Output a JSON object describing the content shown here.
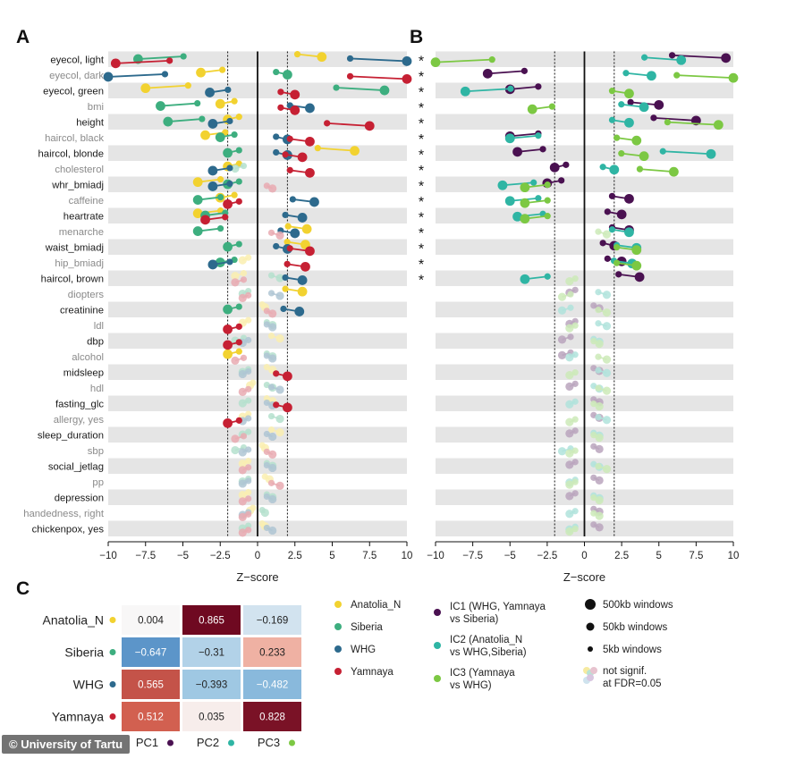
{
  "panels": {
    "a": "A",
    "b": "B",
    "c": "C"
  },
  "chart_data": [
    {
      "type": "scatter",
      "panel": "A",
      "xlabel": "Z−score",
      "xlim": [
        -10,
        10
      ],
      "xticks": [
        -10,
        -7.5,
        -5,
        -2.5,
        0,
        2.5,
        5,
        7.5,
        10
      ],
      "xtick_labels": [
        "−10",
        "−7.5",
        "−5",
        "−2.5",
        "0",
        "2.5",
        "5",
        "7.5",
        "10"
      ],
      "reference_lines": [
        -2,
        0,
        2
      ],
      "traits": [
        "eyecol, light",
        "eyecol, dark",
        "eyecol, green",
        "bmi",
        "height",
        "haircol, black",
        "haircol, blonde",
        "cholesterol",
        "whr_bmiadj",
        "caffeine",
        "heartrate",
        "menarche",
        "waist_bmiadj",
        "hip_bmiadj",
        "haircol, brown",
        "diopters",
        "creatinine",
        "ldl",
        "dbp",
        "alcohol",
        "midsleep",
        "hdl",
        "fasting_glc",
        "allergy, yes",
        "sleep_duration",
        "sbp",
        "social_jetlag",
        "pp",
        "depression",
        "handedness, right",
        "chickenpox, yes"
      ],
      "series": [
        {
          "name": "Anatolia_N",
          "values": [
            4.3,
            -3.8,
            -7.5,
            -2.5,
            -2.0,
            -3.5,
            6.5,
            -2.0,
            -4.0,
            -2.5,
            -4.0,
            3.3,
            3.2,
            -1.0,
            -1.5,
            3.0,
            0.5,
            -1.0,
            1.5,
            -2.0,
            1.0,
            -0.5,
            1.0,
            -1.0,
            1.5,
            0.5,
            -1.0,
            0.8,
            -1.0,
            -0.5,
            0.5
          ]
        },
        {
          "name": "Siberia",
          "values": [
            -8.0,
            2.0,
            8.5,
            -6.5,
            -6.0,
            -2.5,
            -2.0,
            -1.5,
            -2.0,
            -4.0,
            -3.5,
            -4.0,
            -2.0,
            -2.5,
            1.5,
            -1.0,
            -2.0,
            1.0,
            -1.5,
            1.0,
            -1.0,
            1.0,
            -1.0,
            1.5,
            -1.0,
            -1.5,
            1.0,
            -1.0,
            1.0,
            0.5,
            -1.0
          ]
        },
        {
          "name": "WHG",
          "values": [
            10.0,
            -10.0,
            -3.2,
            3.5,
            -3.0,
            2.0,
            2.0,
            -3.0,
            -3.0,
            3.8,
            3.0,
            2.5,
            2.0,
            -3.0,
            3.0,
            1.5,
            2.8,
            1.0,
            -1.0,
            1.0,
            -1.0,
            1.5,
            1.0,
            -1.0,
            1.0,
            -1.0,
            1.0,
            -1.0,
            1.0,
            -1.0,
            1.0
          ]
        },
        {
          "name": "Yamnaya",
          "values": [
            -9.5,
            10.0,
            2.5,
            2.5,
            7.5,
            3.5,
            3.0,
            3.5,
            1.0,
            -2.0,
            -3.5,
            1.5,
            3.5,
            3.2,
            -1.5,
            -1.0,
            1.0,
            -2.0,
            -2.0,
            -1.5,
            2.0,
            -1.0,
            2.0,
            -2.0,
            -1.5,
            1.0,
            -1.0,
            1.5,
            -1.0,
            -1.0,
            -1.0
          ]
        }
      ],
      "legend": {
        "populations": [
          "Anatolia_N",
          "Siberia",
          "WHG",
          "Yamnaya"
        ],
        "pop_colors": [
          "#f2d230",
          "#3dae7f",
          "#2d6a8d",
          "#c62033"
        ]
      }
    },
    {
      "type": "scatter",
      "panel": "B",
      "xlabel": "Z−score",
      "xlim": [
        -10,
        10
      ],
      "xticks": [
        -10,
        -7.5,
        -5,
        -2.5,
        0,
        2.5,
        5,
        7.5,
        10
      ],
      "xtick_labels": [
        "−10",
        "−7.5",
        "−5",
        "−2.5",
        "0",
        "2.5",
        "5",
        "7.5",
        "10"
      ],
      "reference_lines": [
        -2,
        0,
        2
      ],
      "significance_marker": "*",
      "significant_traits": 15,
      "series": [
        {
          "name": "IC1 (WHG, Yamnaya vs Siberia)",
          "values": [
            9.5,
            -6.5,
            -5.0,
            5.0,
            7.5,
            -5.0,
            -4.5,
            -2.0,
            -2.5,
            3.0,
            2.5,
            3.0,
            2.0,
            2.5,
            3.7,
            -1.0,
            1.0,
            -1.0,
            -1.5,
            -1.5,
            1.0,
            -1.0,
            1.0,
            1.0,
            -1.0,
            1.0,
            -1.0,
            1.0,
            -1.0,
            1.0,
            1.0
          ]
        },
        {
          "name": "IC2 (Anatolia_N vs WHG,Siberia)",
          "values": [
            6.5,
            4.5,
            -8.0,
            4.0,
            3.0,
            -5.0,
            8.5,
            2.0,
            -5.5,
            -5.0,
            -4.5,
            3.0,
            3.5,
            3.2,
            -4.0,
            1.5,
            -1.5,
            1.5,
            1.0,
            -1.0,
            1.5,
            1.0,
            -1.0,
            1.5,
            1.0,
            -1.5,
            1.0,
            -1.0,
            1.0,
            -1.0,
            -1.0
          ]
        },
        {
          "name": "IC3 (Yamnaya vs WHG)",
          "values": [
            -10.0,
            10.0,
            3.0,
            -3.5,
            9.0,
            3.5,
            4.0,
            6.0,
            -4.0,
            -4.0,
            -4.0,
            1.5,
            3.5,
            3.5,
            -1.0,
            -1.5,
            1.5,
            -1.0,
            1.0,
            1.5,
            -1.0,
            1.5,
            1.0,
            -1.0,
            1.0,
            -1.0,
            1.5,
            -1.0,
            1.0,
            1.0,
            -1.0
          ]
        }
      ],
      "legend": {
        "components": [
          "IC1 (WHG, Yamnaya vs Siberia)",
          "IC2 (Anatolia_N vs WHG,Siberia)",
          "IC3 (Yamnaya vs WHG)"
        ],
        "component_lines": [
          [
            "IC1 (WHG, Yamnaya",
            "vs Siberia)"
          ],
          [
            "IC2 (Anatolia_N",
            "vs WHG,Siberia)"
          ],
          [
            "IC3 (Yamnaya",
            "vs WHG)"
          ]
        ],
        "component_colors": [
          "#4a1151",
          "#2fb5a4",
          "#7cc843"
        ],
        "window_sizes": [
          "500kb windows",
          "50kb windows",
          "5kb windows"
        ],
        "not_significant": [
          "not signif.",
          "at FDR=0.05"
        ]
      }
    },
    {
      "type": "heatmap",
      "panel": "C",
      "rows": [
        "Anatolia_N",
        "Siberia",
        "WHG",
        "Yamnaya"
      ],
      "columns": [
        "PC1",
        "PC2",
        "PC3"
      ],
      "values": [
        [
          0.004,
          0.865,
          -0.169
        ],
        [
          -0.647,
          -0.31,
          0.233
        ],
        [
          0.565,
          -0.393,
          -0.482
        ],
        [
          0.512,
          0.035,
          0.828
        ]
      ],
      "value_labels": [
        [
          "0.004",
          "0.865",
          "−0.169"
        ],
        [
          "−0.647",
          "−0.31",
          "0.233"
        ],
        [
          "0.565",
          "−0.393",
          "−0.482"
        ],
        [
          "0.512",
          "0.035",
          "0.828"
        ]
      ]
    }
  ],
  "credit": "© University of Tartu"
}
